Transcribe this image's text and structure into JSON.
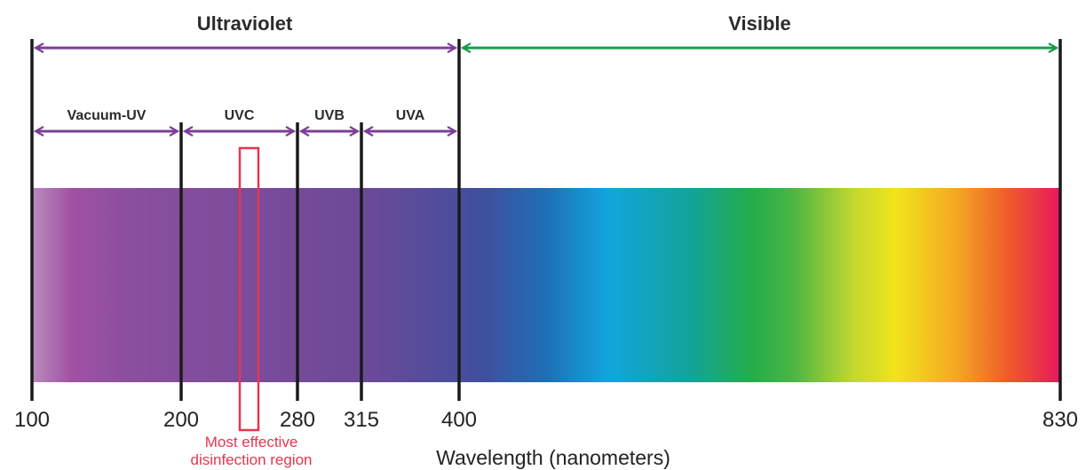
{
  "regions": {
    "ultraviolet": {
      "label": "Ultraviolet",
      "from": 100,
      "to": 400,
      "color": "#7b3f98"
    },
    "visible": {
      "label": "Visible",
      "from": 400,
      "to": 830,
      "color": "#1a9b4b"
    }
  },
  "uv_bands": [
    {
      "label": "Vacuum-UV",
      "from": 100,
      "to": 200
    },
    {
      "label": "UVC",
      "from": 200,
      "to": 280
    },
    {
      "label": "UVB",
      "from": 280,
      "to": 315
    },
    {
      "label": "UVA",
      "from": 315,
      "to": 400
    }
  ],
  "ticks": [
    {
      "label": "100",
      "value": 100
    },
    {
      "label": "200",
      "value": 200
    },
    {
      "label": "280",
      "value": 280
    },
    {
      "label": "315",
      "value": 315
    },
    {
      "label": "400",
      "value": 400
    },
    {
      "label": "830",
      "value": 830
    }
  ],
  "axis_title": "Wavelength (nanometers)",
  "highlight": {
    "label_line1": "Most effective",
    "label_line2": "disinfection region",
    "color": "#e8344e"
  },
  "colors": {
    "divider": "#1a1a1a",
    "spectrum": [
      "#b98bbd",
      "#a150a3",
      "#8c4f9f",
      "#7c4c9a",
      "#6a4a98",
      "#3f4f9e",
      "#1f6fb5",
      "#12a5de",
      "#12a39a",
      "#25ad4a",
      "#4bb545",
      "#c4d82e",
      "#f1e41b",
      "#f5a623",
      "#ee5a2a",
      "#e8175d"
    ]
  }
}
